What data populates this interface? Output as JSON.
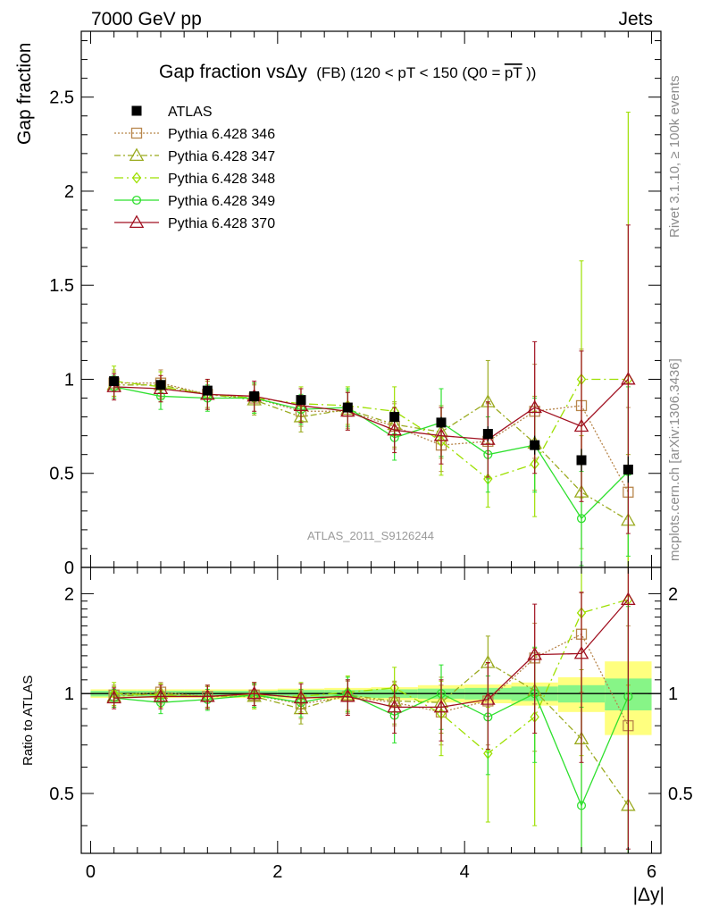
{
  "header": {
    "left": "7000 GeV pp",
    "right": "Jets"
  },
  "side_labels": {
    "rivet": "Rivet 3.1.10, ≥ 100k events",
    "mcplots": "mcplots.cern.ch [arXiv:1306.3436]"
  },
  "watermark": "ATLAS_2011_S9126244",
  "chart_data": [
    {
      "type": "scatter",
      "title_main": "Gap fraction vsΔy",
      "title_sub": "(FB) (120 < pT < 150 (Q0 =",
      "title_bar": "pT",
      "title_end": "))",
      "ylabel": "Gap fraction",
      "xlabel": "|Δy|",
      "xlim": [
        -0.1,
        6.1
      ],
      "ylim": [
        0,
        2.85
      ],
      "yticks": [
        0.5,
        1,
        1.5,
        2,
        2.5
      ],
      "yticklabels": [
        "0.5",
        "1",
        "1.5",
        "2",
        "2.5"
      ],
      "ytick_bottom_label": "0",
      "x": [
        0.25,
        0.75,
        1.25,
        1.75,
        2.25,
        2.75,
        3.25,
        3.75,
        4.25,
        4.75,
        5.25,
        5.75
      ],
      "data": {
        "name": "ATLAS",
        "values": [
          0.99,
          0.97,
          0.94,
          0.91,
          0.89,
          0.85,
          0.8,
          0.77,
          0.71,
          0.65,
          0.57,
          0.52
        ],
        "errors": [
          0.02,
          0.02,
          0.02,
          0.02,
          0.02,
          0.02,
          0.03,
          0.03,
          0.04,
          0.05,
          0.06,
          0.07
        ]
      },
      "series": [
        {
          "name": "Pythia 6.428 346",
          "color": "#b8864b",
          "marker": "square-open",
          "dash": "2,2",
          "values": [
            0.98,
            0.98,
            0.92,
            0.9,
            0.83,
            0.83,
            0.75,
            0.65,
            0.67,
            0.83,
            0.86,
            0.4
          ],
          "errors": [
            0.07,
            0.07,
            0.07,
            0.08,
            0.08,
            0.1,
            0.12,
            0.14,
            0.2,
            0.25,
            0.3,
            0.45
          ]
        },
        {
          "name": "Pythia 6.428 347",
          "color": "#9aaa1e",
          "marker": "triangle-open",
          "dash": "7,3,2,3",
          "values": [
            0.97,
            0.97,
            0.92,
            0.89,
            0.8,
            0.84,
            0.76,
            0.72,
            0.88,
            0.66,
            0.4,
            0.25
          ],
          "errors": [
            0.07,
            0.07,
            0.07,
            0.08,
            0.08,
            0.1,
            0.12,
            0.14,
            0.22,
            0.25,
            0.3,
            0.35
          ]
        },
        {
          "name": "Pythia 6.428 348",
          "color": "#9de000",
          "marker": "diamond-open",
          "dash": "10,4,2,4",
          "values": [
            0.99,
            0.96,
            0.92,
            0.9,
            0.87,
            0.86,
            0.83,
            0.67,
            0.47,
            0.55,
            1.0,
            1.0
          ],
          "errors": [
            0.08,
            0.08,
            0.08,
            0.08,
            0.09,
            0.1,
            0.13,
            0.18,
            0.15,
            0.28,
            0.63,
            1.42
          ]
        },
        {
          "name": "Pythia 6.428 349",
          "color": "#2ee02e",
          "marker": "circle-open",
          "dash": "",
          "values": [
            0.96,
            0.91,
            0.9,
            0.9,
            0.84,
            0.85,
            0.69,
            0.77,
            0.6,
            0.65,
            0.26,
            0.51
          ],
          "errors": [
            0.06,
            0.07,
            0.07,
            0.08,
            0.08,
            0.1,
            0.12,
            0.18,
            0.2,
            0.25,
            0.25,
            0.45
          ]
        },
        {
          "name": "Pythia 6.428 370",
          "color": "#a01020",
          "marker": "triangle-open",
          "dash": "",
          "values": [
            0.96,
            0.95,
            0.92,
            0.91,
            0.86,
            0.83,
            0.73,
            0.7,
            0.68,
            0.85,
            0.75,
            1.0
          ],
          "errors": [
            0.07,
            0.07,
            0.08,
            0.08,
            0.09,
            0.1,
            0.12,
            0.15,
            0.2,
            0.35,
            0.4,
            0.82
          ]
        }
      ]
    },
    {
      "type": "scatter",
      "ylabel": "Ratio to ATLAS",
      "xlabel": "|Δy|",
      "xlim": [
        -0.1,
        6.1
      ],
      "ylim": [
        0.33,
        2.4
      ],
      "log_y": true,
      "yticks": [
        0.5,
        1,
        2
      ],
      "yticklabels": [
        "0.5",
        "1",
        "2"
      ],
      "xticks": [
        0,
        2,
        4,
        6
      ],
      "xticklabels": [
        "0",
        "2",
        "4",
        "6"
      ],
      "x": [
        0.25,
        0.75,
        1.25,
        1.75,
        2.25,
        2.75,
        3.25,
        3.75,
        4.25,
        4.75,
        5.25,
        5.75
      ],
      "bands": {
        "stat": [
          0.02,
          0.02,
          0.02,
          0.02,
          0.025,
          0.025,
          0.03,
          0.035,
          0.04,
          0.05,
          0.06,
          0.11
        ],
        "total": [
          0.03,
          0.03,
          0.03,
          0.03,
          0.035,
          0.04,
          0.045,
          0.06,
          0.065,
          0.08,
          0.12,
          0.25
        ]
      },
      "series": [
        {
          "name": "Pythia 6.428 346",
          "values": [
            0.99,
            1.01,
            0.98,
            0.99,
            0.93,
            0.98,
            0.94,
            0.88,
            0.95,
            1.28,
            1.51,
            0.8
          ],
          "errors": [
            0.07,
            0.07,
            0.07,
            0.08,
            0.09,
            0.11,
            0.14,
            0.18,
            0.25,
            0.35,
            0.5,
            0.8
          ]
        },
        {
          "name": "Pythia 6.428 347",
          "values": [
            0.98,
            1.0,
            0.98,
            0.98,
            0.9,
            0.99,
            0.95,
            0.94,
            1.24,
            1.02,
            0.73,
            0.46
          ],
          "errors": [
            0.07,
            0.07,
            0.07,
            0.08,
            0.09,
            0.11,
            0.14,
            0.18,
            0.25,
            0.35,
            0.45,
            0.6
          ]
        },
        {
          "name": "Pythia 6.428 348",
          "values": [
            1.0,
            0.99,
            0.98,
            0.99,
            0.98,
            1.01,
            1.04,
            0.87,
            0.66,
            0.85,
            1.75,
            1.92
          ],
          "errors": [
            0.08,
            0.08,
            0.08,
            0.09,
            0.1,
            0.12,
            0.16,
            0.22,
            0.25,
            0.45,
            1.1,
            2.7
          ]
        },
        {
          "name": "Pythia 6.428 349",
          "values": [
            0.97,
            0.94,
            0.96,
            0.99,
            0.94,
            1.0,
            0.86,
            1.0,
            0.85,
            1.0,
            0.46,
            0.98
          ],
          "errors": [
            0.06,
            0.07,
            0.07,
            0.08,
            0.09,
            0.12,
            0.15,
            0.22,
            0.28,
            0.38,
            0.45,
            0.85
          ]
        },
        {
          "name": "Pythia 6.428 370",
          "values": [
            0.97,
            0.98,
            0.98,
            1.0,
            0.97,
            0.98,
            0.91,
            0.91,
            0.96,
            1.31,
            1.32,
            1.92
          ],
          "errors": [
            0.07,
            0.08,
            0.08,
            0.08,
            0.1,
            0.12,
            0.15,
            0.19,
            0.28,
            0.55,
            0.7,
            1.58
          ]
        }
      ]
    }
  ]
}
